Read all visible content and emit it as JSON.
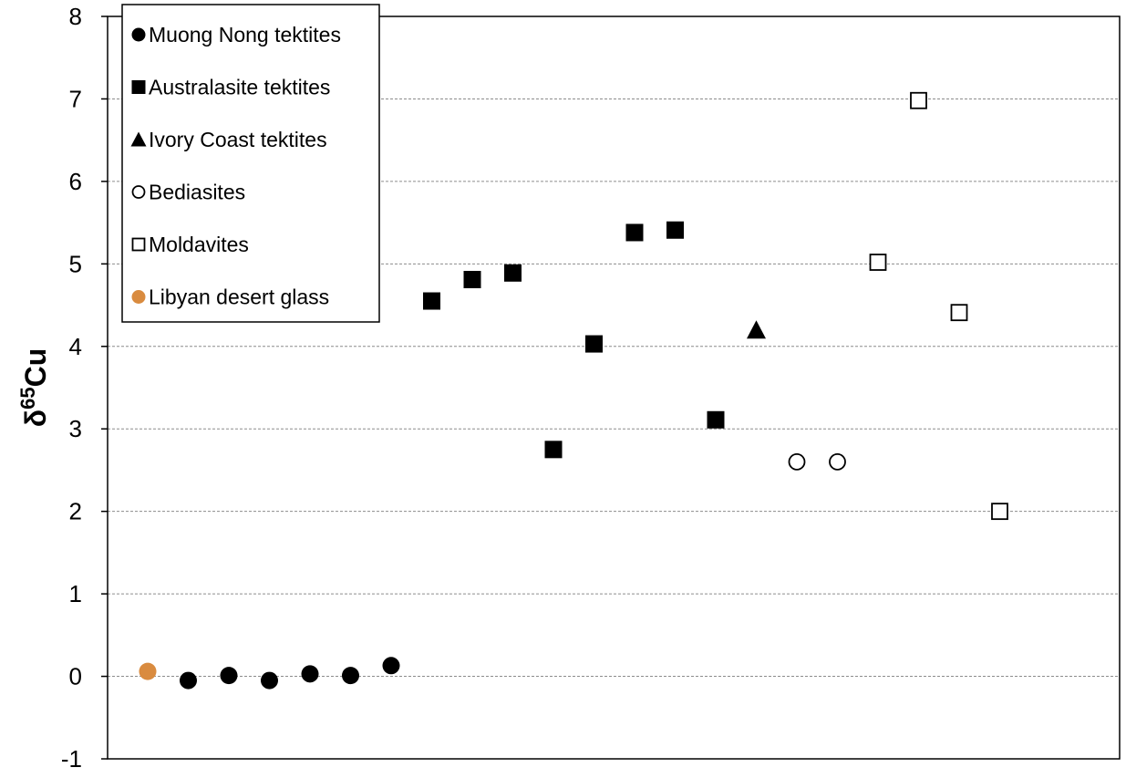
{
  "chart_data": {
    "type": "scatter",
    "ylabel_base": "δ",
    "ylabel_super": "65",
    "ylabel_rest": "Cu",
    "ylim": [
      -1,
      8
    ],
    "yticks": [
      "-1",
      "0",
      "1",
      "2",
      "3",
      "4",
      "5",
      "6",
      "7",
      "8"
    ],
    "grid": "horizontal-dashed",
    "legend_position": "top-left",
    "series": [
      {
        "name": "Muong Nong tektites",
        "marker": "filled-circle",
        "color": "#000000",
        "points": [
          [
            2,
            -0.05
          ],
          [
            3,
            0.01
          ],
          [
            4,
            -0.05
          ],
          [
            5,
            0.03
          ],
          [
            6,
            0.01
          ],
          [
            7,
            0.13
          ]
        ]
      },
      {
        "name": "Australasite tektites",
        "marker": "filled-square",
        "color": "#000000",
        "points": [
          [
            8,
            4.55
          ],
          [
            9,
            4.81
          ],
          [
            10,
            4.89
          ],
          [
            11,
            2.75
          ],
          [
            12,
            4.03
          ],
          [
            13,
            5.38
          ],
          [
            14,
            5.41
          ],
          [
            15,
            3.11
          ]
        ]
      },
      {
        "name": "Ivory Coast tektites",
        "marker": "filled-triangle",
        "color": "#000000",
        "points": [
          [
            16,
            4.2
          ]
        ]
      },
      {
        "name": "Bediasites",
        "marker": "open-circle",
        "color": "#000000",
        "points": [
          [
            17,
            2.6
          ],
          [
            18,
            2.6
          ]
        ]
      },
      {
        "name": "Moldavites",
        "marker": "open-square",
        "color": "#000000",
        "points": [
          [
            19,
            5.02
          ],
          [
            20,
            6.98
          ],
          [
            21,
            4.41
          ],
          [
            22,
            2.0
          ]
        ]
      },
      {
        "name": "Libyan desert glass",
        "marker": "filled-circle",
        "color": "#d98b3f",
        "points": [
          [
            1,
            0.06
          ]
        ]
      }
    ]
  }
}
